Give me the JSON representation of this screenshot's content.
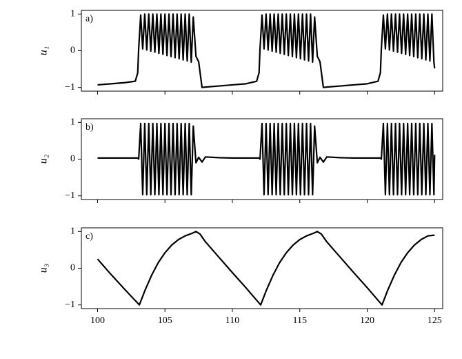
{
  "chart_data": [
    {
      "type": "line",
      "annotation": "a)",
      "ylabel": "u₁",
      "xlim": [
        98.8,
        125.6
      ],
      "ylim": [
        -1.1,
        1.1
      ],
      "xticks": [
        100,
        105,
        110,
        115,
        120,
        125
      ],
      "xticklabels": false,
      "yticks": [
        {
          "value": -1,
          "label": "−1"
        },
        0,
        1
      ],
      "x": [
        100,
        101,
        102,
        102.8,
        102.98,
        103.05,
        103.2,
        103.35,
        103.5,
        103.65,
        103.8,
        103.95,
        104.1,
        104.25,
        104.4,
        104.55,
        104.7,
        104.85,
        105,
        105.15,
        105.3,
        105.45,
        105.6,
        105.75,
        105.9,
        106.05,
        106.2,
        106.35,
        106.5,
        106.65,
        106.8,
        106.95,
        107.1,
        107.3,
        107.5,
        107.75,
        108,
        109,
        110,
        111,
        111.8,
        111.98,
        112.05,
        112.2,
        112.35,
        112.5,
        112.65,
        112.8,
        112.95,
        113.1,
        113.25,
        113.4,
        113.55,
        113.7,
        113.85,
        114,
        114.15,
        114.3,
        114.45,
        114.6,
        114.75,
        114.9,
        115.05,
        115.2,
        115.35,
        115.5,
        115.65,
        115.8,
        115.95,
        116.1,
        116.3,
        116.5,
        116.75,
        117,
        118,
        119,
        120,
        120.8,
        120.98,
        121.05,
        121.2,
        121.35,
        121.5,
        121.65,
        121.8,
        121.95,
        122.1,
        122.25,
        122.4,
        122.55,
        122.7,
        122.85,
        123,
        123.15,
        123.3,
        123.45,
        123.6,
        123.75,
        123.9,
        124.05,
        124.2,
        124.35,
        124.5,
        124.65,
        124.8,
        124.95,
        125
      ],
      "series": [
        {
          "color": "#000000",
          "values": [
            -0.93,
            -0.9,
            -0.87,
            -0.83,
            -0.6,
            0.05,
            0.97,
            0.05,
            1,
            0.02,
            1,
            -0.01,
            1,
            -0.04,
            1,
            -0.07,
            1,
            -0.1,
            1,
            -0.13,
            1,
            -0.16,
            1,
            -0.19,
            1,
            -0.22,
            1,
            -0.25,
            1,
            -0.28,
            1,
            -0.31,
            0.92,
            -0.15,
            -0.3,
            -1,
            -0.99,
            -0.96,
            -0.93,
            -0.9,
            -0.83,
            -0.6,
            0.05,
            0.97,
            0.05,
            1,
            0.02,
            1,
            -0.01,
            1,
            -0.04,
            1,
            -0.07,
            1,
            -0.1,
            1,
            -0.13,
            1,
            -0.16,
            1,
            -0.19,
            1,
            -0.22,
            1,
            -0.25,
            1,
            -0.28,
            1,
            -0.31,
            0.92,
            -0.15,
            -0.3,
            -1,
            -0.99,
            -0.96,
            -0.93,
            -0.9,
            -0.83,
            -0.6,
            0.05,
            0.97,
            0.05,
            1,
            0.02,
            1,
            -0.01,
            1,
            -0.04,
            1,
            -0.07,
            1,
            -0.1,
            1,
            -0.13,
            1,
            -0.16,
            1,
            -0.19,
            1,
            -0.22,
            1,
            -0.25,
            1,
            -0.28,
            1,
            -0.31,
            -0.48
          ]
        }
      ]
    },
    {
      "type": "line",
      "annotation": "b)",
      "ylabel": "u₂",
      "xlim": [
        98.8,
        125.6
      ],
      "ylim": [
        -1.1,
        1.1
      ],
      "xticks": [
        100,
        105,
        110,
        115,
        120,
        125
      ],
      "xticklabels": false,
      "yticks": [
        {
          "value": -1,
          "label": "−1"
        },
        0,
        1
      ],
      "x": [
        100,
        101,
        102,
        102.8,
        102.98,
        103.05,
        103.2,
        103.35,
        103.5,
        103.65,
        103.8,
        103.95,
        104.1,
        104.25,
        104.4,
        104.55,
        104.7,
        104.85,
        105,
        105.15,
        105.3,
        105.45,
        105.6,
        105.75,
        105.9,
        106.05,
        106.2,
        106.35,
        106.5,
        106.65,
        106.8,
        106.95,
        107.1,
        107.3,
        107.5,
        107.75,
        108,
        109,
        110,
        111,
        111.8,
        111.98,
        112.05,
        112.2,
        112.35,
        112.5,
        112.65,
        112.8,
        112.95,
        113.1,
        113.25,
        113.4,
        113.55,
        113.7,
        113.85,
        114,
        114.15,
        114.3,
        114.45,
        114.6,
        114.75,
        114.9,
        115.05,
        115.2,
        115.35,
        115.5,
        115.65,
        115.8,
        115.95,
        116.1,
        116.3,
        116.5,
        116.75,
        117,
        118,
        119,
        120,
        120.8,
        120.98,
        121.05,
        121.2,
        121.35,
        121.5,
        121.65,
        121.8,
        121.95,
        122.1,
        122.25,
        122.4,
        122.55,
        122.7,
        122.85,
        123,
        123.15,
        123.3,
        123.45,
        123.6,
        123.75,
        123.9,
        124.05,
        124.2,
        124.35,
        124.5,
        124.65,
        124.8,
        124.95,
        125
      ],
      "series": [
        {
          "color": "#000000",
          "values": [
            0.03,
            0.03,
            0.03,
            0.03,
            0.03,
            0,
            0.97,
            -0.97,
            0.97,
            -0.97,
            0.97,
            -0.97,
            0.97,
            -0.97,
            0.97,
            -0.97,
            0.97,
            -0.97,
            0.97,
            -0.97,
            0.97,
            -0.97,
            0.97,
            -0.97,
            0.97,
            -0.97,
            0.97,
            -0.97,
            0.97,
            -0.97,
            0.97,
            -0.97,
            0.9,
            -0.1,
            0.05,
            -0.08,
            0.06,
            0.04,
            0.03,
            0.03,
            0.03,
            0.03,
            0,
            0.97,
            -0.97,
            0.97,
            -0.97,
            0.97,
            -0.97,
            0.97,
            -0.97,
            0.97,
            -0.97,
            0.97,
            -0.97,
            0.97,
            -0.97,
            0.97,
            -0.97,
            0.97,
            -0.97,
            0.97,
            -0.97,
            0.97,
            -0.97,
            0.97,
            -0.97,
            0.97,
            -0.97,
            0.9,
            -0.1,
            0.05,
            -0.08,
            0.06,
            0.04,
            0.03,
            0.03,
            0.03,
            0.03,
            0,
            0.97,
            -0.97,
            0.97,
            -0.97,
            0.97,
            -0.97,
            0.97,
            -0.97,
            0.97,
            -0.97,
            0.97,
            -0.97,
            0.97,
            -0.97,
            0.97,
            -0.97,
            0.97,
            -0.97,
            0.97,
            -0.97,
            0.97,
            -0.97,
            0.97,
            -0.97,
            0.97,
            -0.97,
            0.12
          ]
        }
      ]
    },
    {
      "type": "line",
      "annotation": "c)",
      "ylabel": "u₃",
      "xlim": [
        98.8,
        125.6
      ],
      "ylim": [
        -1.1,
        1.1
      ],
      "xticks": [
        100,
        105,
        110,
        115,
        120,
        125
      ],
      "xticklabels": true,
      "yticks": [
        {
          "value": -1,
          "label": "−1"
        },
        0,
        1
      ],
      "x": [
        100,
        101,
        102,
        103.1,
        103.5,
        104,
        104.5,
        105,
        105.5,
        106,
        106.5,
        107,
        107.3,
        107.6,
        108,
        109,
        110,
        111,
        112.1,
        112.5,
        113,
        113.5,
        114,
        114.5,
        115,
        115.5,
        116,
        116.3,
        116.6,
        117,
        118,
        119,
        120,
        121.1,
        121.5,
        122,
        122.5,
        123,
        123.5,
        124,
        124.5,
        125
      ],
      "series": [
        {
          "color": "#000000",
          "values": [
            0.25,
            -0.17,
            -0.57,
            -1,
            -0.62,
            -0.2,
            0.15,
            0.42,
            0.63,
            0.78,
            0.88,
            0.95,
            1,
            0.93,
            0.72,
            0.3,
            -0.12,
            -0.53,
            -1,
            -0.62,
            -0.2,
            0.15,
            0.42,
            0.63,
            0.78,
            0.88,
            0.95,
            1,
            0.93,
            0.72,
            0.3,
            -0.12,
            -0.53,
            -1,
            -0.62,
            -0.2,
            0.15,
            0.42,
            0.63,
            0.78,
            0.88,
            0.9
          ]
        }
      ]
    }
  ]
}
